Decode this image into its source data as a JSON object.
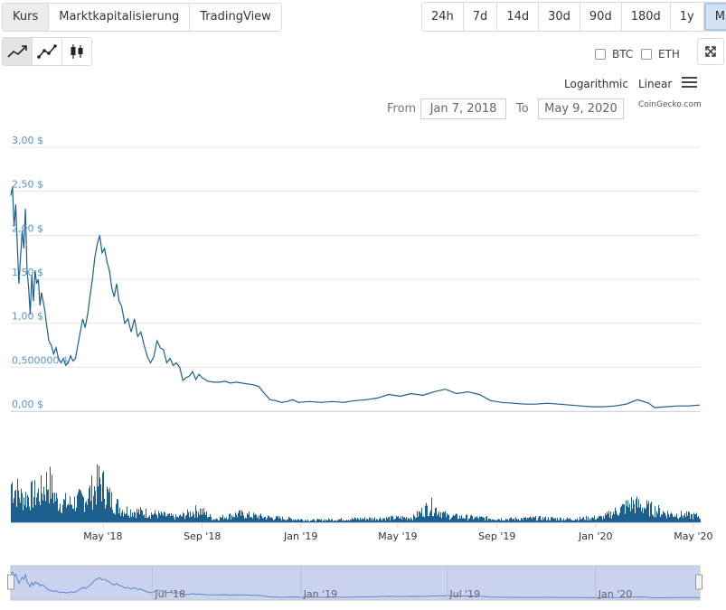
{
  "tabs": {
    "kurs": "Kurs",
    "marktkap": "Marktkapitalisierung",
    "tradingview": "TradingView"
  },
  "ranges": [
    "24h",
    "7d",
    "14d",
    "30d",
    "90d",
    "180d",
    "1y",
    "Max"
  ],
  "chart_type_icons": [
    "area-chart-icon",
    "line-chart-icon",
    "candlestick-icon"
  ],
  "compare": {
    "btc": "BTC",
    "eth": "ETH"
  },
  "scale": {
    "log": "Logarithmic",
    "linear": "Linear"
  },
  "date_range": {
    "from_label": "From",
    "from": "Jan 7, 2018",
    "to_label": "To",
    "to": "May 9, 2020"
  },
  "credit": "CoinGecko.com",
  "chart_data": {
    "type": "line",
    "y_ticks": [
      "3,00 $",
      "2,50 $",
      "2,00 $",
      "1,50 $",
      "1,00 $",
      "0,500000 $",
      "0,00 $"
    ],
    "y_tick_values": [
      3.0,
      2.5,
      2.0,
      1.5,
      1.0,
      0.5,
      0.0
    ],
    "ylim": [
      0,
      3.0
    ],
    "x_ticks": [
      "May '18",
      "Sep '18",
      "Jan '19",
      "May '19",
      "Sep '19",
      "Jan '20",
      "May '20"
    ],
    "x_tick_dates": [
      "2018-05-01",
      "2018-09-01",
      "2019-01-01",
      "2019-05-01",
      "2019-09-01",
      "2020-01-01",
      "2020-05-01"
    ],
    "navigator_ticks": [
      "Jul '18",
      "Jan '19",
      "Jul '19",
      "Jan '20"
    ],
    "navigator_tick_dates": [
      "2018-07-01",
      "2019-01-01",
      "2019-07-01",
      "2020-01-01"
    ],
    "series": [
      {
        "points": [
          [
            "2018-01-07",
            2.45
          ],
          [
            "2018-01-09",
            2.55
          ],
          [
            "2018-01-11",
            2.1
          ],
          [
            "2018-01-13",
            2.35
          ],
          [
            "2018-01-15",
            1.9
          ],
          [
            "2018-01-17",
            1.45
          ],
          [
            "2018-01-19",
            1.75
          ],
          [
            "2018-01-21",
            2.05
          ],
          [
            "2018-01-23",
            1.85
          ],
          [
            "2018-01-25",
            2.3
          ],
          [
            "2018-01-27",
            1.6
          ],
          [
            "2018-01-29",
            1.4
          ],
          [
            "2018-01-31",
            1.1
          ],
          [
            "2018-02-02",
            1.55
          ],
          [
            "2018-02-04",
            1.25
          ],
          [
            "2018-02-06",
            1.6
          ],
          [
            "2018-02-08",
            1.45
          ],
          [
            "2018-02-10",
            1.5
          ],
          [
            "2018-02-12",
            1.2
          ],
          [
            "2018-02-14",
            1.35
          ],
          [
            "2018-02-16",
            1.25
          ],
          [
            "2018-02-18",
            1.15
          ],
          [
            "2018-02-20",
            1.0
          ],
          [
            "2018-02-23",
            0.8
          ],
          [
            "2018-02-26",
            0.75
          ],
          [
            "2018-03-01",
            0.65
          ],
          [
            "2018-03-04",
            0.72
          ],
          [
            "2018-03-07",
            0.6
          ],
          [
            "2018-03-10",
            0.55
          ],
          [
            "2018-03-13",
            0.6
          ],
          [
            "2018-03-16",
            0.52
          ],
          [
            "2018-03-19",
            0.55
          ],
          [
            "2018-03-22",
            0.63
          ],
          [
            "2018-03-25",
            0.57
          ],
          [
            "2018-03-28",
            0.6
          ],
          [
            "2018-03-31",
            0.75
          ],
          [
            "2018-04-03",
            0.9
          ],
          [
            "2018-04-06",
            1.05
          ],
          [
            "2018-04-09",
            0.95
          ],
          [
            "2018-04-12",
            1.1
          ],
          [
            "2018-04-15",
            1.3
          ],
          [
            "2018-04-18",
            1.5
          ],
          [
            "2018-04-21",
            1.75
          ],
          [
            "2018-04-24",
            1.9
          ],
          [
            "2018-04-27",
            2.0
          ],
          [
            "2018-04-30",
            1.8
          ],
          [
            "2018-05-03",
            1.85
          ],
          [
            "2018-05-06",
            1.7
          ],
          [
            "2018-05-09",
            1.6
          ],
          [
            "2018-05-12",
            1.4
          ],
          [
            "2018-05-15",
            1.3
          ],
          [
            "2018-05-18",
            1.45
          ],
          [
            "2018-05-21",
            1.25
          ],
          [
            "2018-05-24",
            1.2
          ],
          [
            "2018-05-28",
            1.0
          ],
          [
            "2018-06-01",
            1.05
          ],
          [
            "2018-06-05",
            0.9
          ],
          [
            "2018-06-09",
            1.05
          ],
          [
            "2018-06-13",
            0.85
          ],
          [
            "2018-06-17",
            0.9
          ],
          [
            "2018-06-21",
            0.75
          ],
          [
            "2018-06-25",
            0.62
          ],
          [
            "2018-06-29",
            0.55
          ],
          [
            "2018-07-03",
            0.62
          ],
          [
            "2018-07-07",
            0.8
          ],
          [
            "2018-07-11",
            0.72
          ],
          [
            "2018-07-15",
            0.7
          ],
          [
            "2018-07-19",
            0.55
          ],
          [
            "2018-07-23",
            0.6
          ],
          [
            "2018-07-27",
            0.52
          ],
          [
            "2018-07-31",
            0.55
          ],
          [
            "2018-08-04",
            0.5
          ],
          [
            "2018-08-08",
            0.35
          ],
          [
            "2018-08-12",
            0.38
          ],
          [
            "2018-08-16",
            0.4
          ],
          [
            "2018-08-20",
            0.45
          ],
          [
            "2018-08-24",
            0.36
          ],
          [
            "2018-08-28",
            0.42
          ],
          [
            "2018-09-01",
            0.38
          ],
          [
            "2018-09-08",
            0.34
          ],
          [
            "2018-09-15",
            0.33
          ],
          [
            "2018-09-22",
            0.33
          ],
          [
            "2018-09-29",
            0.34
          ],
          [
            "2018-10-06",
            0.32
          ],
          [
            "2018-10-13",
            0.33
          ],
          [
            "2018-10-20",
            0.32
          ],
          [
            "2018-10-27",
            0.31
          ],
          [
            "2018-11-03",
            0.3
          ],
          [
            "2018-11-10",
            0.28
          ],
          [
            "2018-11-17",
            0.2
          ],
          [
            "2018-11-24",
            0.13
          ],
          [
            "2018-12-01",
            0.12
          ],
          [
            "2018-12-08",
            0.1
          ],
          [
            "2018-12-15",
            0.11
          ],
          [
            "2018-12-22",
            0.13
          ],
          [
            "2018-12-29",
            0.1
          ],
          [
            "2019-01-12",
            0.11
          ],
          [
            "2019-01-26",
            0.1
          ],
          [
            "2019-02-09",
            0.11
          ],
          [
            "2019-02-23",
            0.1
          ],
          [
            "2019-03-09",
            0.12
          ],
          [
            "2019-03-23",
            0.13
          ],
          [
            "2019-04-06",
            0.15
          ],
          [
            "2019-04-20",
            0.19
          ],
          [
            "2019-05-04",
            0.17
          ],
          [
            "2019-05-18",
            0.2
          ],
          [
            "2019-06-01",
            0.18
          ],
          [
            "2019-06-15",
            0.22
          ],
          [
            "2019-06-29",
            0.25
          ],
          [
            "2019-07-13",
            0.2
          ],
          [
            "2019-07-27",
            0.22
          ],
          [
            "2019-08-10",
            0.19
          ],
          [
            "2019-08-24",
            0.12
          ],
          [
            "2019-09-07",
            0.1
          ],
          [
            "2019-09-21",
            0.09
          ],
          [
            "2019-10-05",
            0.08
          ],
          [
            "2019-10-19",
            0.08
          ],
          [
            "2019-11-02",
            0.09
          ],
          [
            "2019-11-16",
            0.08
          ],
          [
            "2019-11-30",
            0.07
          ],
          [
            "2019-12-14",
            0.06
          ],
          [
            "2019-12-28",
            0.05
          ],
          [
            "2020-01-11",
            0.05
          ],
          [
            "2020-01-25",
            0.06
          ],
          [
            "2020-02-08",
            0.08
          ],
          [
            "2020-02-22",
            0.13
          ],
          [
            "2020-03-07",
            0.09
          ],
          [
            "2020-03-14",
            0.04
          ],
          [
            "2020-03-28",
            0.05
          ],
          [
            "2020-04-11",
            0.06
          ],
          [
            "2020-04-25",
            0.06
          ],
          [
            "2020-05-09",
            0.07
          ]
        ]
      }
    ],
    "volume_relative": [
      [
        "2018-01-07",
        0.95
      ],
      [
        "2018-01-20",
        0.6
      ],
      [
        "2018-02-01",
        0.65
      ],
      [
        "2018-02-12",
        0.7
      ],
      [
        "2018-02-22",
        1.0
      ],
      [
        "2018-03-05",
        0.5
      ],
      [
        "2018-03-20",
        0.45
      ],
      [
        "2018-04-05",
        0.55
      ],
      [
        "2018-04-20",
        0.8
      ],
      [
        "2018-04-27",
        1.0
      ],
      [
        "2018-05-10",
        0.55
      ],
      [
        "2018-05-25",
        0.3
      ],
      [
        "2018-06-15",
        0.25
      ],
      [
        "2018-07-05",
        0.2
      ],
      [
        "2018-08-01",
        0.12
      ],
      [
        "2018-08-28",
        0.3
      ],
      [
        "2018-09-15",
        0.08
      ],
      [
        "2018-10-15",
        0.2
      ],
      [
        "2018-11-20",
        0.12
      ],
      [
        "2019-01-15",
        0.05
      ],
      [
        "2019-03-01",
        0.08
      ],
      [
        "2019-04-15",
        0.1
      ],
      [
        "2019-05-20",
        0.12
      ],
      [
        "2019-06-10",
        0.4
      ],
      [
        "2019-07-01",
        0.15
      ],
      [
        "2019-08-15",
        0.1
      ],
      [
        "2019-09-15",
        0.08
      ],
      [
        "2019-10-20",
        0.1
      ],
      [
        "2019-12-01",
        0.08
      ],
      [
        "2020-01-10",
        0.12
      ],
      [
        "2020-02-15",
        0.45
      ],
      [
        "2020-03-05",
        0.35
      ],
      [
        "2020-04-01",
        0.2
      ],
      [
        "2020-05-09",
        0.15
      ]
    ]
  }
}
